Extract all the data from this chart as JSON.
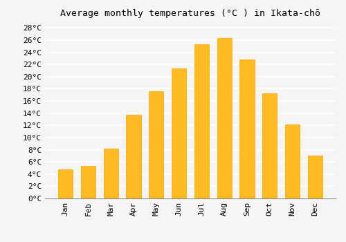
{
  "title": "Average monthly temperatures (°C ) in Ikata-chō",
  "months": [
    "Jan",
    "Feb",
    "Mar",
    "Apr",
    "May",
    "Jun",
    "Jul",
    "Aug",
    "Sep",
    "Oct",
    "Nov",
    "Dec"
  ],
  "temperatures": [
    4.8,
    5.3,
    8.2,
    13.7,
    17.6,
    21.3,
    25.3,
    26.3,
    22.8,
    17.3,
    12.1,
    7.0
  ],
  "bar_color": "#FFBB22",
  "bar_edge_color": "#FFA500",
  "background_color": "#F5F5F5",
  "grid_color": "#FFFFFF",
  "ylim": [
    0,
    29
  ],
  "yticks": [
    0,
    2,
    4,
    6,
    8,
    10,
    12,
    14,
    16,
    18,
    20,
    22,
    24,
    26,
    28
  ],
  "ytick_labels": [
    "0°C",
    "2°C",
    "4°C",
    "6°C",
    "8°C",
    "10°C",
    "12°C",
    "14°C",
    "16°C",
    "18°C",
    "20°C",
    "22°C",
    "24°C",
    "26°C",
    "28°C"
  ],
  "title_fontsize": 9.5,
  "tick_fontsize": 8,
  "font_family": "monospace",
  "bar_width": 0.65
}
